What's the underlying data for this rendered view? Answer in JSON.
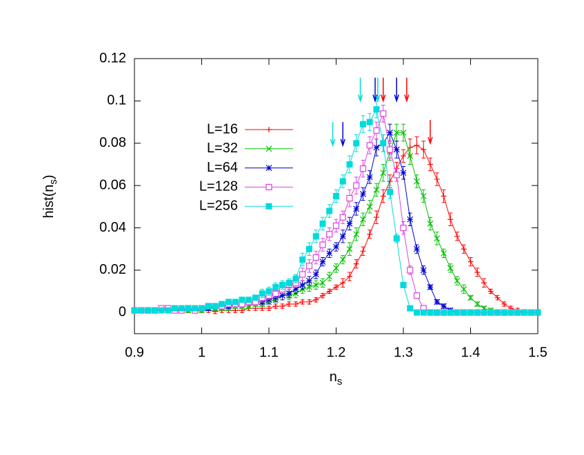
{
  "chart_data": {
    "type": "line",
    "xlabel": [
      "n",
      "s"
    ],
    "ylabel": [
      "hist(n",
      "s",
      ")"
    ],
    "xlim": [
      0.9,
      1.5
    ],
    "ylim": [
      -0.01,
      0.12
    ],
    "xticks": [
      0.9,
      1,
      1.1,
      1.2,
      1.3,
      1.4,
      1.5
    ],
    "yticks": [
      0,
      0.02,
      0.04,
      0.06,
      0.08,
      0.1,
      0.12
    ],
    "legend": "upper-left",
    "x": [
      0.9,
      0.91,
      0.92,
      0.93,
      0.94,
      0.95,
      0.96,
      0.97,
      0.98,
      0.99,
      1.0,
      1.01,
      1.02,
      1.03,
      1.04,
      1.05,
      1.06,
      1.07,
      1.08,
      1.09,
      1.1,
      1.11,
      1.12,
      1.13,
      1.14,
      1.15,
      1.16,
      1.17,
      1.18,
      1.19,
      1.2,
      1.21,
      1.22,
      1.23,
      1.24,
      1.25,
      1.26,
      1.27,
      1.28,
      1.29,
      1.3,
      1.31,
      1.32,
      1.33,
      1.34,
      1.35,
      1.36,
      1.37,
      1.38,
      1.39,
      1.4,
      1.41,
      1.42,
      1.43,
      1.44,
      1.45,
      1.46,
      1.47,
      1.48,
      1.49,
      1.5
    ],
    "series": [
      {
        "name": "L=16",
        "color": "#ff0000",
        "marker": "plus",
        "values": [
          0.001,
          0.001,
          0.001,
          0.001,
          0.001,
          0.001,
          0.001,
          0.001,
          0.001,
          0.001,
          0.001,
          0.001,
          0.0005,
          0.001,
          0.001,
          0.001,
          0.001,
          0.002,
          0.002,
          0.002,
          0.002,
          0.003,
          0.003,
          0.004,
          0.004,
          0.005,
          0.005,
          0.006,
          0.008,
          0.01,
          0.012,
          0.014,
          0.017,
          0.023,
          0.029,
          0.037,
          0.045,
          0.055,
          0.062,
          0.068,
          0.074,
          0.078,
          0.079,
          0.077,
          0.07,
          0.063,
          0.055,
          0.044,
          0.036,
          0.03,
          0.024,
          0.019,
          0.014,
          0.01,
          0.007,
          0.004,
          0.002,
          0.001,
          0,
          0,
          0
        ],
        "errors": [
          0.001,
          0.001,
          0.001,
          0.001,
          0.001,
          0.001,
          0.001,
          0.001,
          0.001,
          0.001,
          0.001,
          0.001,
          0.001,
          0.001,
          0.001,
          0.001,
          0.001,
          0.001,
          0.001,
          0.001,
          0.001,
          0.001,
          0.001,
          0.001,
          0.001,
          0.001,
          0.001,
          0.001,
          0.001,
          0.001,
          0.001,
          0.002,
          0.002,
          0.002,
          0.002,
          0.002,
          0.003,
          0.003,
          0.003,
          0.003,
          0.003,
          0.004,
          0.004,
          0.004,
          0.003,
          0.003,
          0.003,
          0.003,
          0.002,
          0.002,
          0.002,
          0.002,
          0.002,
          0.001,
          0.001,
          0.001,
          0.001,
          0.001,
          0,
          0,
          0
        ]
      },
      {
        "name": "L=32",
        "color": "#00c000",
        "marker": "cross",
        "values": [
          0.001,
          0.001,
          0.001,
          0.001,
          0.002,
          0.001,
          0.001,
          0.001,
          0.001,
          0.002,
          0.001,
          0.002,
          0.002,
          0.002,
          0.002,
          0.003,
          0.003,
          0.003,
          0.004,
          0.004,
          0.005,
          0.006,
          0.008,
          0.008,
          0.009,
          0.011,
          0.012,
          0.013,
          0.014,
          0.017,
          0.021,
          0.025,
          0.03,
          0.037,
          0.044,
          0.05,
          0.058,
          0.066,
          0.076,
          0.085,
          0.085,
          0.074,
          0.062,
          0.055,
          0.042,
          0.035,
          0.028,
          0.021,
          0.015,
          0.011,
          0.007,
          0.004,
          0.002,
          0.001,
          0,
          0,
          0,
          0,
          0,
          0,
          0
        ],
        "errors": [
          0.001,
          0.001,
          0.001,
          0.001,
          0.001,
          0.001,
          0.001,
          0.001,
          0.001,
          0.001,
          0.001,
          0.001,
          0.001,
          0.001,
          0.001,
          0.001,
          0.001,
          0.001,
          0.001,
          0.001,
          0.001,
          0.001,
          0.002,
          0.002,
          0.002,
          0.002,
          0.002,
          0.002,
          0.002,
          0.002,
          0.002,
          0.002,
          0.003,
          0.003,
          0.003,
          0.003,
          0.003,
          0.004,
          0.004,
          0.004,
          0.004,
          0.004,
          0.003,
          0.003,
          0.003,
          0.003,
          0.002,
          0.002,
          0.002,
          0.002,
          0.001,
          0.001,
          0.001,
          0.001,
          0,
          0,
          0,
          0,
          0,
          0,
          0
        ]
      },
      {
        "name": "L=64",
        "color": "#0000d0",
        "marker": "star",
        "values": [
          0.001,
          0.001,
          0.001,
          0.001,
          0.001,
          0.001,
          0.002,
          0.001,
          0.002,
          0.001,
          0.002,
          0.002,
          0.003,
          0.003,
          0.003,
          0.004,
          0.004,
          0.005,
          0.005,
          0.005,
          0.006,
          0.007,
          0.008,
          0.009,
          0.011,
          0.013,
          0.015,
          0.018,
          0.024,
          0.028,
          0.031,
          0.036,
          0.042,
          0.049,
          0.056,
          0.064,
          0.078,
          0.08,
          0.085,
          0.077,
          0.066,
          0.044,
          0.03,
          0.02,
          0.012,
          0.005,
          0.003,
          0.001,
          0,
          0,
          0,
          0,
          0,
          0,
          0,
          0,
          0,
          0,
          0,
          0,
          0
        ],
        "errors": [
          0.001,
          0.001,
          0.001,
          0.001,
          0.001,
          0.001,
          0.001,
          0.001,
          0.001,
          0.001,
          0.001,
          0.001,
          0.001,
          0.001,
          0.001,
          0.001,
          0.001,
          0.001,
          0.001,
          0.001,
          0.002,
          0.002,
          0.002,
          0.002,
          0.002,
          0.002,
          0.002,
          0.002,
          0.002,
          0.002,
          0.002,
          0.003,
          0.003,
          0.003,
          0.003,
          0.003,
          0.004,
          0.004,
          0.004,
          0.004,
          0.003,
          0.003,
          0.002,
          0.002,
          0.001,
          0.001,
          0.001,
          0.001,
          0,
          0,
          0,
          0,
          0,
          0,
          0,
          0,
          0,
          0,
          0,
          0,
          0
        ]
      },
      {
        "name": "L=128",
        "color": "#e040e0",
        "marker": "box",
        "values": [
          0.001,
          0.001,
          0.001,
          0.001,
          0.002,
          0.002,
          0.001,
          0.001,
          0.002,
          0.001,
          0.002,
          0.003,
          0.003,
          0.003,
          0.004,
          0.004,
          0.004,
          0.005,
          0.005,
          0.007,
          0.008,
          0.009,
          0.011,
          0.013,
          0.014,
          0.018,
          0.022,
          0.026,
          0.032,
          0.037,
          0.041,
          0.045,
          0.054,
          0.06,
          0.068,
          0.079,
          0.086,
          0.094,
          0.077,
          0.065,
          0.04,
          0.02,
          0.008,
          0.002,
          0,
          0,
          0,
          0,
          0,
          0,
          0,
          0,
          0,
          0,
          0,
          0,
          0,
          0,
          0,
          0,
          0
        ],
        "errors": [
          0.001,
          0.001,
          0.001,
          0.001,
          0.001,
          0.001,
          0.001,
          0.001,
          0.001,
          0.001,
          0.001,
          0.001,
          0.001,
          0.001,
          0.001,
          0.001,
          0.001,
          0.001,
          0.001,
          0.002,
          0.002,
          0.002,
          0.002,
          0.002,
          0.002,
          0.003,
          0.003,
          0.003,
          0.003,
          0.003,
          0.003,
          0.003,
          0.004,
          0.004,
          0.004,
          0.004,
          0.004,
          0.004,
          0.004,
          0.003,
          0.003,
          0.002,
          0.001,
          0.001,
          0,
          0,
          0,
          0,
          0,
          0,
          0,
          0,
          0,
          0,
          0,
          0,
          0,
          0,
          0,
          0,
          0
        ]
      },
      {
        "name": "L=256",
        "color": "#00dada",
        "marker": "filled-box",
        "values": [
          0.001,
          0.001,
          0.001,
          0.001,
          0.001,
          0.001,
          0.002,
          0.002,
          0.002,
          0.002,
          0.002,
          0.003,
          0.003,
          0.004,
          0.005,
          0.005,
          0.006,
          0.006,
          0.007,
          0.009,
          0.01,
          0.012,
          0.013,
          0.014,
          0.016,
          0.025,
          0.03,
          0.036,
          0.042,
          0.048,
          0.055,
          0.062,
          0.07,
          0.08,
          0.089,
          0.09,
          0.096,
          0.08,
          0.057,
          0.035,
          0.013,
          0.002,
          0,
          0,
          0,
          0,
          0,
          0,
          0,
          0,
          0,
          0,
          0,
          0,
          0,
          0,
          0,
          0,
          0,
          0,
          0
        ],
        "errors": [
          0.001,
          0.001,
          0.001,
          0.001,
          0.001,
          0.001,
          0.001,
          0.001,
          0.001,
          0.001,
          0.001,
          0.001,
          0.001,
          0.001,
          0.001,
          0.001,
          0.001,
          0.001,
          0.001,
          0.002,
          0.002,
          0.002,
          0.002,
          0.002,
          0.002,
          0.003,
          0.003,
          0.003,
          0.003,
          0.003,
          0.003,
          0.003,
          0.004,
          0.004,
          0.004,
          0.004,
          0.004,
          0.004,
          0.003,
          0.002,
          0.001,
          0.001,
          0,
          0,
          0,
          0,
          0,
          0,
          0,
          0,
          0,
          0,
          0,
          0,
          0,
          0,
          0,
          0,
          0,
          0,
          0
        ]
      }
    ],
    "arrows": [
      {
        "x": 1.236,
        "from": 0.111,
        "to": 0.1,
        "color": "#00dada"
      },
      {
        "x": 1.258,
        "from": 0.111,
        "to": 0.1,
        "color": "#0000d0"
      },
      {
        "x": 1.262,
        "from": 0.111,
        "to": 0.1,
        "color": "#00dada"
      },
      {
        "x": 1.27,
        "from": 0.111,
        "to": 0.1,
        "color": "#ff0000"
      },
      {
        "x": 1.29,
        "from": 0.111,
        "to": 0.1,
        "color": "#0000d0"
      },
      {
        "x": 1.305,
        "from": 0.111,
        "to": 0.1,
        "color": "#ff0000"
      },
      {
        "x": 1.195,
        "from": 0.09,
        "to": 0.079,
        "color": "#00dada"
      },
      {
        "x": 1.21,
        "from": 0.09,
        "to": 0.079,
        "color": "#0000d0"
      },
      {
        "x": 1.34,
        "from": 0.091,
        "to": 0.08,
        "color": "#ff0000"
      }
    ]
  }
}
